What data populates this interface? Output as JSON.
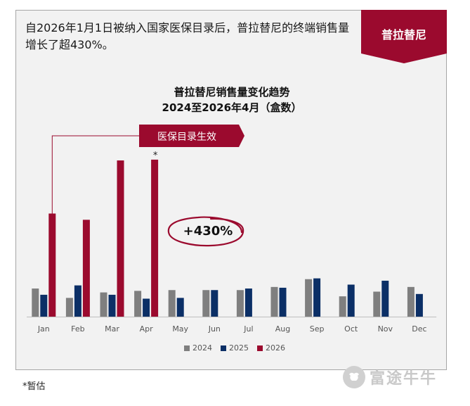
{
  "headline": "自2026年1月1日被纳入国家医保目录后，普拉替尼的终端销售量增长了超430%。",
  "brand_tag": "普拉替尼",
  "footnote": "*暂估",
  "watermark": "富途牛牛",
  "colors": {
    "y2024": "#7f7f7f",
    "y2025": "#0b2f66",
    "y2026": "#9b0a2e",
    "accent": "#9b0a2e"
  },
  "annotations": {
    "policy_label": "医保目录生效",
    "growth_label": "+430%",
    "estimate_marker": "*"
  },
  "chart_data": {
    "type": "bar",
    "title": "普拉替尼销售量变化趋势",
    "subtitle": "2024至2026年4月（盒数）",
    "xlabel": "",
    "ylabel": "",
    "ylim": [
      0,
      100
    ],
    "grid": false,
    "legend_position": "bottom",
    "categories": [
      "Jan",
      "Feb",
      "Mar",
      "Apr",
      "May",
      "Jun",
      "Jul",
      "Aug",
      "Sep",
      "Oct",
      "Nov",
      "Dec"
    ],
    "series": [
      {
        "name": "2024",
        "values": [
          18,
          12,
          15.5,
          16.5,
          17,
          17,
          17,
          19,
          24,
          13,
          16,
          19
        ]
      },
      {
        "name": "2025",
        "values": [
          14,
          20,
          14,
          11.5,
          12,
          17,
          18,
          18.5,
          24.5,
          20.5,
          23,
          14.5
        ]
      },
      {
        "name": "2026",
        "values": [
          66,
          62,
          100,
          100.5,
          null,
          null,
          null,
          null,
          null,
          null,
          null,
          null
        ]
      }
    ]
  }
}
